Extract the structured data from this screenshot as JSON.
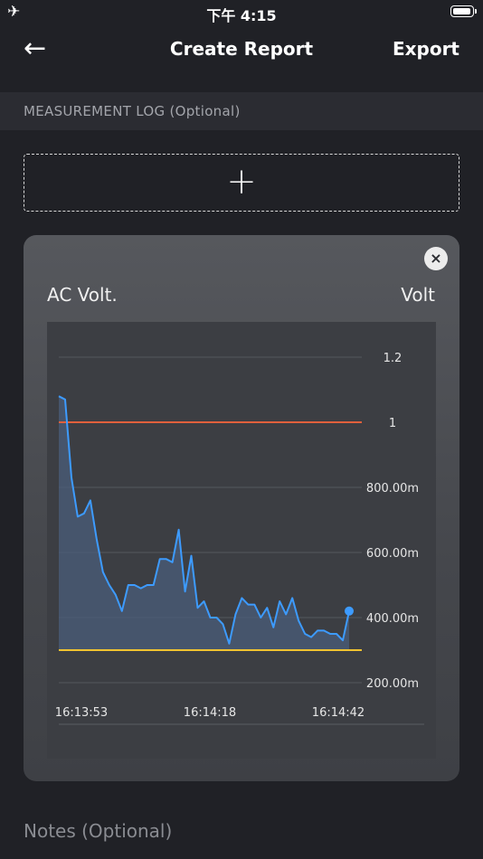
{
  "status_bar": {
    "time": "下午 4:15",
    "airplane_icon": "airplane-icon",
    "battery_icon": "battery-icon"
  },
  "nav": {
    "back_icon": "back-arrow-icon",
    "back_glyph": "←",
    "title": "Create Report",
    "export_label": "Export"
  },
  "section": {
    "title": "MEASUREMENT LOG (Optional)"
  },
  "add_log": {
    "plus_glyph": "+",
    "icon": "plus-icon"
  },
  "card": {
    "close_glyph": "×",
    "close_icon": "close-icon",
    "title": "AC Volt.",
    "unit": "Volt"
  },
  "notes": {
    "placeholder": "Notes (Optional)"
  },
  "colors": {
    "line": "#3d9bff",
    "upper_limit": "#e0603c",
    "lower_limit": "#f0c330",
    "area_fill": "#4a5e7a"
  },
  "chart_data": {
    "type": "area",
    "y_tick_labels": [
      "1.2",
      "1",
      "800.00m",
      "600.00m",
      "400.00m",
      "200.00m"
    ],
    "y_ticks": [
      1.2,
      1.0,
      0.8,
      0.6,
      0.4,
      0.2
    ],
    "ylim": [
      0.15,
      1.2
    ],
    "x_tick_labels": [
      "16:13:53",
      "16:14:18",
      "16:14:42"
    ],
    "upper_limit": 1.0,
    "lower_limit": 0.3,
    "grid": true,
    "values": [
      1.08,
      1.07,
      0.83,
      0.71,
      0.72,
      0.76,
      0.64,
      0.54,
      0.5,
      0.47,
      0.42,
      0.5,
      0.5,
      0.49,
      0.5,
      0.5,
      0.58,
      0.58,
      0.57,
      0.67,
      0.48,
      0.59,
      0.43,
      0.45,
      0.4,
      0.4,
      0.38,
      0.32,
      0.41,
      0.46,
      0.44,
      0.44,
      0.4,
      0.43,
      0.37,
      0.45,
      0.41,
      0.46,
      0.39,
      0.35,
      0.34,
      0.36,
      0.36,
      0.35,
      0.35,
      0.33,
      0.42
    ]
  }
}
